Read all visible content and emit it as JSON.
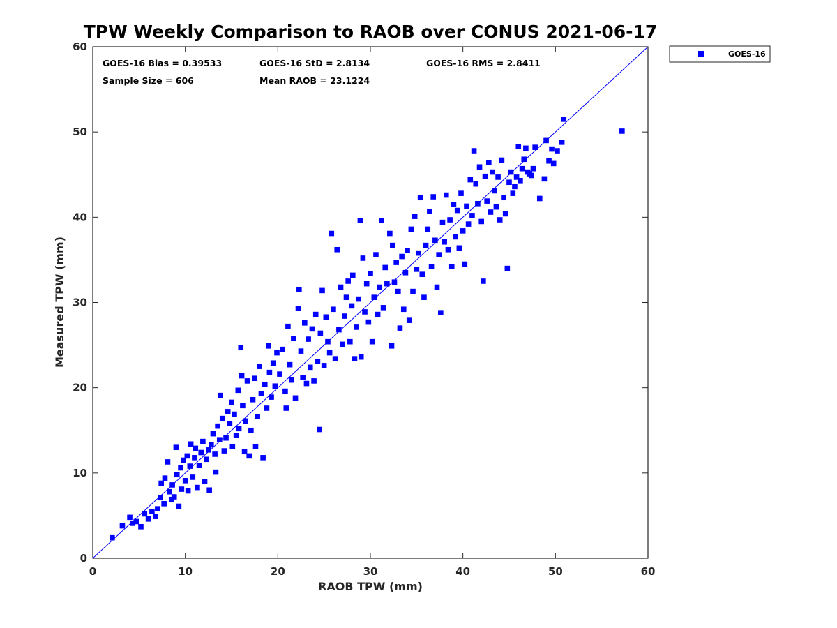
{
  "chart_data": {
    "type": "scatter",
    "title": "TPW Weekly Comparison to RAOB over CONUS 2021-06-17",
    "xlabel": "RAOB TPW (mm)",
    "ylabel": "Measured TPW (mm)",
    "xlim": [
      0,
      60
    ],
    "ylim": [
      0,
      60
    ],
    "xticks": [
      "0",
      "10",
      "20",
      "30",
      "40",
      "50",
      "60"
    ],
    "yticks": [
      "0",
      "10",
      "20",
      "30",
      "40",
      "50",
      "60"
    ],
    "grid": false,
    "legend": {
      "placement": "outside-top-right",
      "entries": [
        "GOES-16"
      ]
    },
    "annotations": [
      "GOES-16 Bias = 0.39533",
      "GOES-16 StD = 2.8134",
      "GOES-16 RMS = 2.8411",
      "Sample Size = 606",
      "Mean RAOB = 23.1224"
    ],
    "reference_line": {
      "x": [
        0,
        60
      ],
      "y": [
        0,
        60
      ],
      "color": "#0000ff"
    },
    "series": [
      {
        "name": "GOES-16",
        "color": "#0000ff",
        "marker": "square",
        "points": [
          [
            2.1,
            2.4
          ],
          [
            3.2,
            3.8
          ],
          [
            4.0,
            4.8
          ],
          [
            4.3,
            4.1
          ],
          [
            4.7,
            4.3
          ],
          [
            5.2,
            3.7
          ],
          [
            5.6,
            5.2
          ],
          [
            6.0,
            4.6
          ],
          [
            6.4,
            5.5
          ],
          [
            6.8,
            4.9
          ],
          [
            7.0,
            5.8
          ],
          [
            7.3,
            7.1
          ],
          [
            7.4,
            8.8
          ],
          [
            7.7,
            6.4
          ],
          [
            7.8,
            9.4
          ],
          [
            8.1,
            11.3
          ],
          [
            8.3,
            7.8
          ],
          [
            8.5,
            6.9
          ],
          [
            8.6,
            8.6
          ],
          [
            8.8,
            7.2
          ],
          [
            9.0,
            13.0
          ],
          [
            9.1,
            9.8
          ],
          [
            9.3,
            6.1
          ],
          [
            9.5,
            10.6
          ],
          [
            9.6,
            8.1
          ],
          [
            9.8,
            11.5
          ],
          [
            10.0,
            9.1
          ],
          [
            10.2,
            12.0
          ],
          [
            10.3,
            7.9
          ],
          [
            10.5,
            10.8
          ],
          [
            10.6,
            13.4
          ],
          [
            10.8,
            9.5
          ],
          [
            11.0,
            11.8
          ],
          [
            11.1,
            12.9
          ],
          [
            11.3,
            8.3
          ],
          [
            11.5,
            10.9
          ],
          [
            11.7,
            12.4
          ],
          [
            11.9,
            13.7
          ],
          [
            12.1,
            9.0
          ],
          [
            12.3,
            11.6
          ],
          [
            12.5,
            12.7
          ],
          [
            12.6,
            8.0
          ],
          [
            12.8,
            13.3
          ],
          [
            13.0,
            14.6
          ],
          [
            13.2,
            12.2
          ],
          [
            13.3,
            10.1
          ],
          [
            13.5,
            15.5
          ],
          [
            13.7,
            13.9
          ],
          [
            13.8,
            19.1
          ],
          [
            14.0,
            16.4
          ],
          [
            14.2,
            12.6
          ],
          [
            14.4,
            14.1
          ],
          [
            14.6,
            17.2
          ],
          [
            14.8,
            15.8
          ],
          [
            15.0,
            18.3
          ],
          [
            15.1,
            13.1
          ],
          [
            15.3,
            16.9
          ],
          [
            15.5,
            14.4
          ],
          [
            15.7,
            19.7
          ],
          [
            15.8,
            15.2
          ],
          [
            16.0,
            24.7
          ],
          [
            16.1,
            21.4
          ],
          [
            16.2,
            17.9
          ],
          [
            16.4,
            12.5
          ],
          [
            16.5,
            16.1
          ],
          [
            16.7,
            20.8
          ],
          [
            16.9,
            12.0
          ],
          [
            17.1,
            15.0
          ],
          [
            17.3,
            18.6
          ],
          [
            17.5,
            21.1
          ],
          [
            17.6,
            13.1
          ],
          [
            17.8,
            16.6
          ],
          [
            18.0,
            22.5
          ],
          [
            18.2,
            19.3
          ],
          [
            18.4,
            11.8
          ],
          [
            18.6,
            20.4
          ],
          [
            18.8,
            17.6
          ],
          [
            19.0,
            24.9
          ],
          [
            19.1,
            21.8
          ],
          [
            19.3,
            18.9
          ],
          [
            19.5,
            22.9
          ],
          [
            19.7,
            20.2
          ],
          [
            19.9,
            24.1
          ],
          [
            20.2,
            21.6
          ],
          [
            20.5,
            24.5
          ],
          [
            20.8,
            19.6
          ],
          [
            20.9,
            17.6
          ],
          [
            21.1,
            27.2
          ],
          [
            21.3,
            22.7
          ],
          [
            21.5,
            20.9
          ],
          [
            21.7,
            25.8
          ],
          [
            21.9,
            18.8
          ],
          [
            22.2,
            29.3
          ],
          [
            22.3,
            31.5
          ],
          [
            22.5,
            24.3
          ],
          [
            22.7,
            21.2
          ],
          [
            22.9,
            27.6
          ],
          [
            23.1,
            20.5
          ],
          [
            23.3,
            25.7
          ],
          [
            23.5,
            22.4
          ],
          [
            23.7,
            26.9
          ],
          [
            23.9,
            20.8
          ],
          [
            24.1,
            28.6
          ],
          [
            24.3,
            23.1
          ],
          [
            24.5,
            15.1
          ],
          [
            24.6,
            26.4
          ],
          [
            24.8,
            31.4
          ],
          [
            25.0,
            22.6
          ],
          [
            25.2,
            28.3
          ],
          [
            25.4,
            25.4
          ],
          [
            25.6,
            24.1
          ],
          [
            25.8,
            38.1
          ],
          [
            26.0,
            29.2
          ],
          [
            26.2,
            23.4
          ],
          [
            26.4,
            36.2
          ],
          [
            26.6,
            26.8
          ],
          [
            26.8,
            31.8
          ],
          [
            27.0,
            25.1
          ],
          [
            27.2,
            28.4
          ],
          [
            27.4,
            30.6
          ],
          [
            27.6,
            32.5
          ],
          [
            27.8,
            25.4
          ],
          [
            28.0,
            29.6
          ],
          [
            28.1,
            33.2
          ],
          [
            28.3,
            23.4
          ],
          [
            28.5,
            27.1
          ],
          [
            28.7,
            30.4
          ],
          [
            28.9,
            39.6
          ],
          [
            29.0,
            23.6
          ],
          [
            29.2,
            35.2
          ],
          [
            29.4,
            28.9
          ],
          [
            29.6,
            32.2
          ],
          [
            29.8,
            27.7
          ],
          [
            30.0,
            33.4
          ],
          [
            30.2,
            25.4
          ],
          [
            30.4,
            30.6
          ],
          [
            30.6,
            35.6
          ],
          [
            30.8,
            28.6
          ],
          [
            31.0,
            31.8
          ],
          [
            31.2,
            39.6
          ],
          [
            31.4,
            29.4
          ],
          [
            31.6,
            34.1
          ],
          [
            31.8,
            32.2
          ],
          [
            32.1,
            38.1
          ],
          [
            32.3,
            24.9
          ],
          [
            32.4,
            36.7
          ],
          [
            32.6,
            32.4
          ],
          [
            32.8,
            34.7
          ],
          [
            33.0,
            31.3
          ],
          [
            33.2,
            27.0
          ],
          [
            33.4,
            35.4
          ],
          [
            33.6,
            29.2
          ],
          [
            33.8,
            33.5
          ],
          [
            34.0,
            36.1
          ],
          [
            34.2,
            27.9
          ],
          [
            34.4,
            38.6
          ],
          [
            34.6,
            31.3
          ],
          [
            34.8,
            40.1
          ],
          [
            35.0,
            33.9
          ],
          [
            35.2,
            35.8
          ],
          [
            35.4,
            42.3
          ],
          [
            35.6,
            33.3
          ],
          [
            35.8,
            30.6
          ],
          [
            36.0,
            36.7
          ],
          [
            36.2,
            38.6
          ],
          [
            36.4,
            40.7
          ],
          [
            36.6,
            34.2
          ],
          [
            36.8,
            42.4
          ],
          [
            37.0,
            37.3
          ],
          [
            37.2,
            31.8
          ],
          [
            37.4,
            35.6
          ],
          [
            37.6,
            28.8
          ],
          [
            37.8,
            39.4
          ],
          [
            38.0,
            37.1
          ],
          [
            38.2,
            42.6
          ],
          [
            38.4,
            36.2
          ],
          [
            38.6,
            39.7
          ],
          [
            38.8,
            34.2
          ],
          [
            39.0,
            41.5
          ],
          [
            39.2,
            37.7
          ],
          [
            39.4,
            40.8
          ],
          [
            39.6,
            36.4
          ],
          [
            39.8,
            42.8
          ],
          [
            40.0,
            38.4
          ],
          [
            40.2,
            34.5
          ],
          [
            40.4,
            41.3
          ],
          [
            40.6,
            39.2
          ],
          [
            40.8,
            44.4
          ],
          [
            41.0,
            40.2
          ],
          [
            41.2,
            47.8
          ],
          [
            41.4,
            43.9
          ],
          [
            41.6,
            41.6
          ],
          [
            41.8,
            45.9
          ],
          [
            42.0,
            39.5
          ],
          [
            42.2,
            32.5
          ],
          [
            42.4,
            44.8
          ],
          [
            42.6,
            41.9
          ],
          [
            42.8,
            46.4
          ],
          [
            43.0,
            40.6
          ],
          [
            43.2,
            45.3
          ],
          [
            43.4,
            43.1
          ],
          [
            43.6,
            41.2
          ],
          [
            43.8,
            44.7
          ],
          [
            44.0,
            39.7
          ],
          [
            44.2,
            46.7
          ],
          [
            44.4,
            42.3
          ],
          [
            44.6,
            40.4
          ],
          [
            44.8,
            34.0
          ],
          [
            45.0,
            44.1
          ],
          [
            45.2,
            45.3
          ],
          [
            45.4,
            42.8
          ],
          [
            45.6,
            43.6
          ],
          [
            45.8,
            44.7
          ],
          [
            46.0,
            48.3
          ],
          [
            46.2,
            44.3
          ],
          [
            46.4,
            45.7
          ],
          [
            46.6,
            46.8
          ],
          [
            46.8,
            48.1
          ],
          [
            47.0,
            45.3
          ],
          [
            47.2,
            45.1
          ],
          [
            47.4,
            44.9
          ],
          [
            47.6,
            45.7
          ],
          [
            47.8,
            48.2
          ],
          [
            48.3,
            42.2
          ],
          [
            48.8,
            44.5
          ],
          [
            49.0,
            49.0
          ],
          [
            49.3,
            46.6
          ],
          [
            49.6,
            48.0
          ],
          [
            49.8,
            46.3
          ],
          [
            50.2,
            47.8
          ],
          [
            50.7,
            48.8
          ],
          [
            50.9,
            51.5
          ],
          [
            57.2,
            50.1
          ]
        ]
      }
    ]
  }
}
